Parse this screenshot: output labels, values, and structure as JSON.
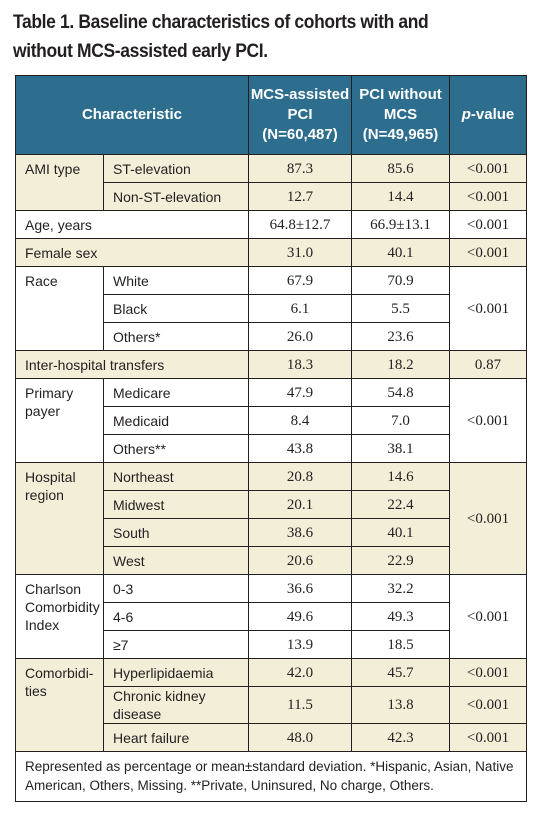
{
  "title": "Table 1. Baseline characteristics of cohorts with and without MCS-assisted early PCI.",
  "header": {
    "characteristic": "Characteristic",
    "col1_line1": "MCS-assisted",
    "col1_line2": "PCI",
    "col1_line3": "(N=60,487)",
    "col2_line1": "PCI without",
    "col2_line2": "MCS",
    "col2_line3": "(N=49,965)",
    "pvalue_italic": "p",
    "pvalue_rest": "-value"
  },
  "rows": {
    "ami_type": {
      "label": "AMI type",
      "st": {
        "label": "ST-elevation",
        "mcs": "87.3",
        "pci": "85.6",
        "p": "<0.001"
      },
      "nst": {
        "label": "Non-ST-elevation",
        "mcs": "12.7",
        "pci": "14.4",
        "p": "<0.001"
      }
    },
    "age": {
      "label": "Age, years",
      "mcs": "64.8±12.7",
      "pci": "66.9±13.1",
      "p": "<0.001"
    },
    "female": {
      "label": "Female sex",
      "mcs": "31.0",
      "pci": "40.1",
      "p": "<0.001"
    },
    "race": {
      "label": "Race",
      "p": "<0.001",
      "white": {
        "label": "White",
        "mcs": "67.9",
        "pci": "70.9"
      },
      "black": {
        "label": "Black",
        "mcs": "6.1",
        "pci": "5.5"
      },
      "others": {
        "label": "Others*",
        "mcs": "26.0",
        "pci": "23.6"
      }
    },
    "transfers": {
      "label": "Inter-hospital transfers",
      "mcs": "18.3",
      "pci": "18.2",
      "p": "0.87"
    },
    "payer": {
      "label_line1": "Primary",
      "label_line2": "payer",
      "p": "<0.001",
      "medicare": {
        "label": "Medicare",
        "mcs": "47.9",
        "pci": "54.8"
      },
      "medicaid": {
        "label": "Medicaid",
        "mcs": "8.4",
        "pci": "7.0"
      },
      "others": {
        "label": "Others**",
        "mcs": "43.8",
        "pci": "38.1"
      }
    },
    "region": {
      "label_line1": "Hospital",
      "label_line2": "region",
      "p": "<0.001",
      "northeast": {
        "label": "Northeast",
        "mcs": "20.8",
        "pci": "14.6"
      },
      "midwest": {
        "label": "Midwest",
        "mcs": "20.1",
        "pci": "22.4"
      },
      "south": {
        "label": "South",
        "mcs": "38.6",
        "pci": "40.1"
      },
      "west": {
        "label": "West",
        "mcs": "20.6",
        "pci": "22.9"
      }
    },
    "charlson": {
      "label_line1": "Charlson",
      "label_line2": "Comorbidity",
      "label_line3": "Index",
      "p": "<0.001",
      "r1": {
        "label": "0-3",
        "mcs": "36.6",
        "pci": "32.2"
      },
      "r2": {
        "label": "4-6",
        "mcs": "49.6",
        "pci": "49.3"
      },
      "r3": {
        "label": "≥7",
        "mcs": "13.9",
        "pci": "18.5"
      }
    },
    "comorb": {
      "label_line1": "Comorbidi-",
      "label_line2": "ties",
      "hyper": {
        "label": "Hyperlipidaemia",
        "mcs": "42.0",
        "pci": "45.7",
        "p": "<0.001"
      },
      "ckd": {
        "label": "Chronic kidney disease",
        "mcs": "11.5",
        "pci": "13.8",
        "p": "<0.001"
      },
      "hf": {
        "label": "Heart failure",
        "mcs": "48.0",
        "pci": "42.3",
        "p": "<0.001"
      }
    }
  },
  "footnote": "Represented as percentage or mean±standard deviation. *Hispanic, Asian, Native American, Others, Missing. **Private, Uninsured, No charge, Others."
}
